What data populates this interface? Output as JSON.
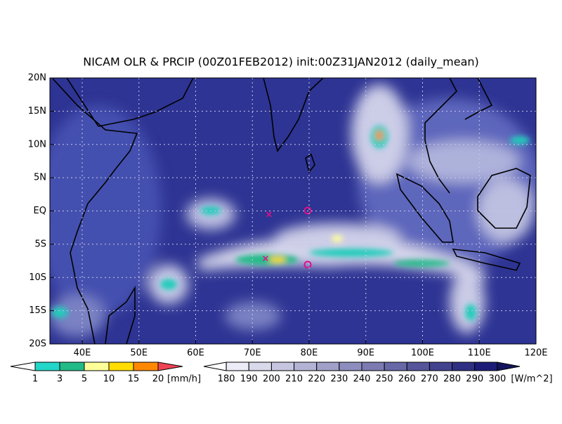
{
  "title": "NICAM OLR & PRCIP (00Z01FEB2012) init:00Z31JAN2012 (daily_mean)",
  "map": {
    "lat_labels": [
      "20N",
      "15N",
      "10N",
      "5N",
      "EQ",
      "5S",
      "10S",
      "15S",
      "20S"
    ],
    "lon_labels": [
      "40E",
      "50E",
      "60E",
      "70E",
      "80E",
      "90E",
      "100E",
      "110E",
      "120E"
    ]
  },
  "precip_legend": {
    "labels": [
      "1",
      "3",
      "5",
      "10",
      "15",
      "20"
    ],
    "unit": "[mm/h]"
  },
  "olr_legend": {
    "labels": [
      "180",
      "190",
      "200",
      "210",
      "220",
      "230",
      "240",
      "250",
      "260",
      "270",
      "280",
      "290",
      "300"
    ],
    "unit": "[W/m^2]"
  }
}
